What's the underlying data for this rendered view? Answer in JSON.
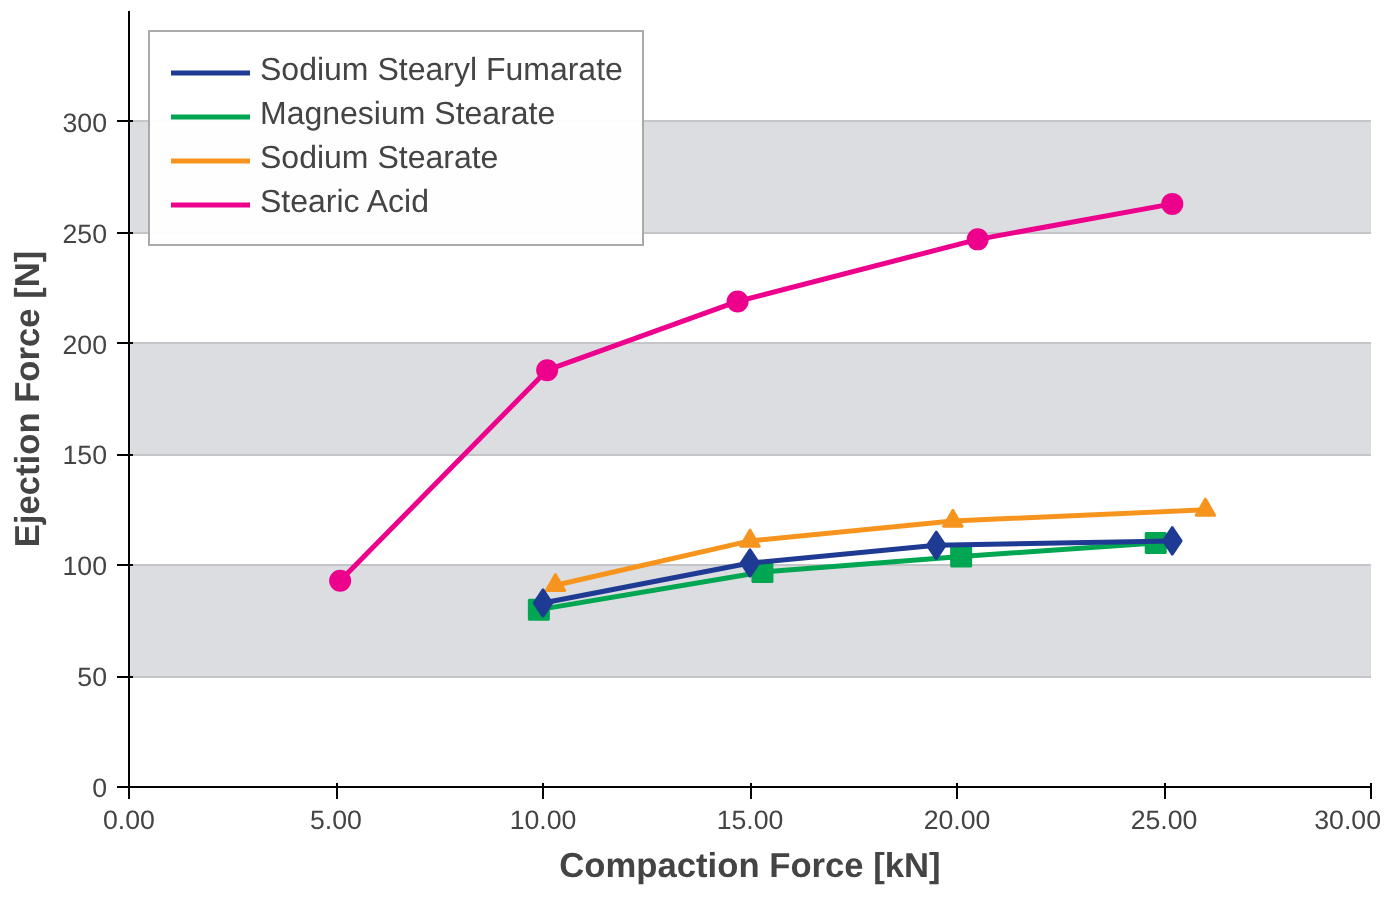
{
  "chart_data": {
    "type": "line",
    "xlabel": "Compaction Force [kN]",
    "ylabel": "Ejection Force [N]",
    "xlim": [
      0,
      30
    ],
    "xticks": [
      {
        "value": 0,
        "label": "0.00"
      },
      {
        "value": 5,
        "label": "5.00"
      },
      {
        "value": 10,
        "label": "10.00"
      },
      {
        "value": 15,
        "label": "15.00"
      },
      {
        "value": 20,
        "label": "20.00"
      },
      {
        "value": 25,
        "label": "25.00"
      },
      {
        "value": 30,
        "label": "30.00"
      }
    ],
    "ylim": [
      0,
      350
    ],
    "yticks": [
      0,
      50,
      100,
      150,
      200,
      250,
      300
    ],
    "grid": "y",
    "legend": "top left",
    "line_style": "solid",
    "series": [
      {
        "name": "Sodium Stearyl Fumarate",
        "color": "#1f3a93",
        "marker": "diamond",
        "x": [
          10,
          15,
          19.5,
          25.2
        ],
        "values": [
          83,
          101,
          109,
          111
        ]
      },
      {
        "name": "Magnesium Stearate",
        "color": "#00a651",
        "marker": "square",
        "x": [
          9.9,
          15.3,
          20.1,
          24.8
        ],
        "values": [
          80,
          97,
          104,
          110
        ]
      },
      {
        "name": "Sodium Stearate",
        "color": "#f7941d",
        "marker": "triangle",
        "x": [
          10.3,
          15,
          19.9,
          26
        ],
        "values": [
          91,
          111,
          120,
          125
        ]
      },
      {
        "name": "Stearic Acid",
        "color": "#ec008c",
        "marker": "circle",
        "x": [
          5.1,
          10.1,
          14.7,
          20.5,
          25.2
        ],
        "values": [
          93,
          188,
          219,
          247,
          263
        ]
      }
    ]
  }
}
